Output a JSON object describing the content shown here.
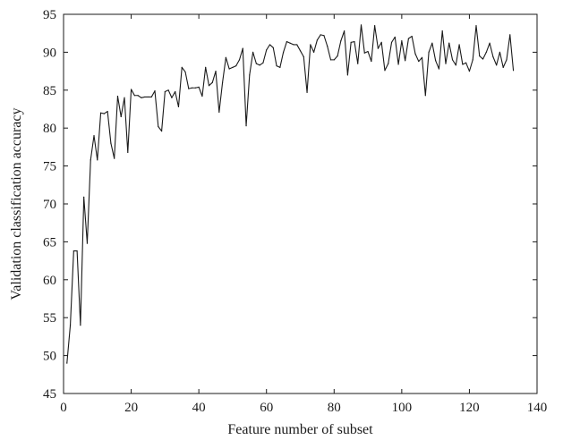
{
  "chart_data": {
    "type": "line",
    "title": "",
    "xlabel": "Feature number of subset",
    "ylabel": "Validation classification accuracy",
    "xlim": [
      0,
      140
    ],
    "ylim": [
      45,
      95
    ],
    "xticks": [
      0,
      20,
      40,
      60,
      80,
      100,
      120,
      140
    ],
    "yticks": [
      45,
      50,
      55,
      60,
      65,
      70,
      75,
      80,
      85,
      90,
      95
    ],
    "grid": false,
    "legend": "none",
    "line_color": "#1a1a1a",
    "series": [
      {
        "x": [
          1,
          2,
          3,
          4,
          5,
          6,
          7,
          8,
          9,
          10,
          11,
          12,
          13,
          14,
          15,
          16,
          17,
          18,
          19,
          20,
          21,
          22,
          23,
          24,
          25,
          26,
          27,
          28,
          29,
          30,
          31,
          32,
          33,
          34,
          35,
          36,
          37,
          38,
          39,
          40,
          41,
          42,
          43,
          44,
          45,
          46,
          47,
          48,
          49,
          50,
          51,
          52,
          53,
          54,
          55,
          56,
          57,
          58,
          59,
          60,
          61,
          62,
          63,
          64,
          65,
          66,
          67,
          68,
          69,
          70,
          71,
          72,
          73,
          74,
          75,
          76,
          77,
          78,
          79,
          80,
          81,
          82,
          83,
          84,
          85,
          86,
          87,
          88,
          89,
          90,
          91,
          92,
          93,
          94,
          95,
          96,
          97,
          98,
          99,
          100,
          101,
          102,
          103,
          104,
          105,
          106,
          107,
          108,
          109,
          110,
          111,
          112,
          113,
          114,
          115,
          116,
          117,
          118,
          119,
          120,
          121,
          122,
          123,
          124,
          125,
          126,
          127,
          128,
          129,
          130,
          131,
          132,
          133
        ],
        "y": [
          49.0,
          54.0,
          63.8,
          63.8,
          54.0,
          70.9,
          64.8,
          75.8,
          79.0,
          75.8,
          82.0,
          81.9,
          82.2,
          78.0,
          76.0,
          84.2,
          81.5,
          84.0,
          76.8,
          85.1,
          84.3,
          84.3,
          84.0,
          84.1,
          84.1,
          84.1,
          84.9,
          80.2,
          79.6,
          84.8,
          85.0,
          84.0,
          84.8,
          82.8,
          88.0,
          87.4,
          85.2,
          85.3,
          85.3,
          85.4,
          84.2,
          88.0,
          85.6,
          86.0,
          87.5,
          82.1,
          86.0,
          89.3,
          87.8,
          88.0,
          88.2,
          89.0,
          90.5,
          80.3,
          87.0,
          90.0,
          88.5,
          88.3,
          88.6,
          90.3,
          91.0,
          90.6,
          88.2,
          88.0,
          90.0,
          91.4,
          91.2,
          91.0,
          91.0,
          90.2,
          89.4,
          84.7,
          91.0,
          90.0,
          91.6,
          92.3,
          92.2,
          90.8,
          89.0,
          89.0,
          89.5,
          91.5,
          92.8,
          87.0,
          91.3,
          91.4,
          88.5,
          93.6,
          89.9,
          90.1,
          88.8,
          93.5,
          90.5,
          91.3,
          87.6,
          88.5,
          91.3,
          92.0,
          88.4,
          91.5,
          88.9,
          91.8,
          92.1,
          89.8,
          88.8,
          89.3,
          84.3,
          90.0,
          91.2,
          88.9,
          87.8,
          92.8,
          88.5,
          91.2,
          89.0,
          88.3,
          91.0,
          88.4,
          88.6,
          87.5,
          89.0,
          93.5,
          89.5,
          89.1,
          90.0,
          91.2,
          89.4,
          88.3,
          90.0,
          88.0,
          89.0,
          92.3,
          87.6
        ]
      }
    ]
  }
}
